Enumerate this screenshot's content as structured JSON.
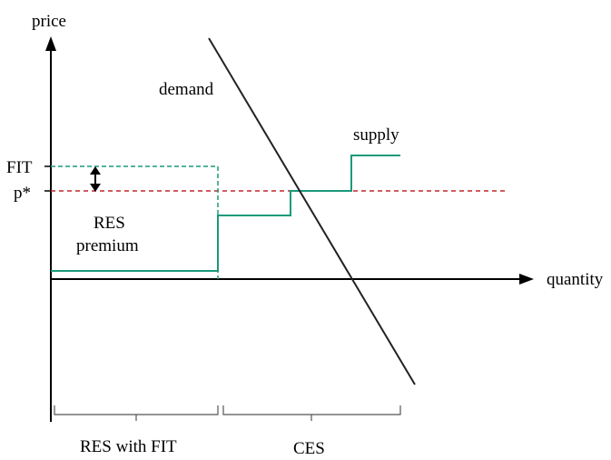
{
  "labels": {
    "y_axis": "price",
    "x_axis": "quantity",
    "demand": "demand",
    "supply": "supply",
    "fit": "FIT",
    "p_star": "p*",
    "res_premium_line1": "RES",
    "res_premium_line2": "premium",
    "res_with_fit": "RES with FIT",
    "ces": "CES"
  },
  "colors": {
    "axis": "#000000",
    "supply": "#1a9a7a",
    "fit_dashed": "#1a9a7a",
    "p_star_dashed": "#c0272d",
    "demand": "#222222"
  }
}
